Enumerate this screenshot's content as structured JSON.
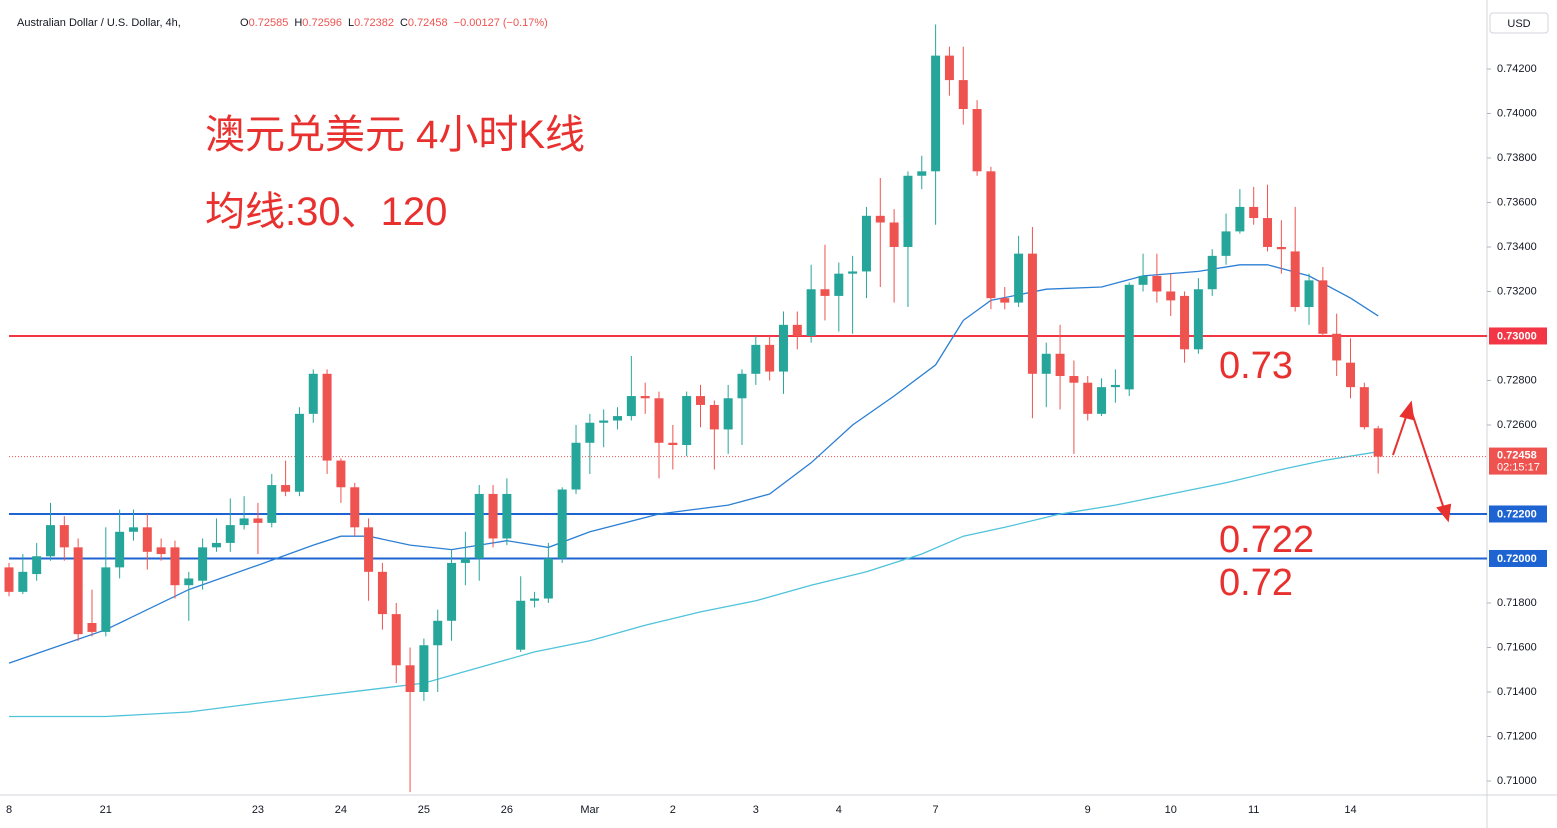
{
  "chart_data": {
    "type": "candlestick",
    "header": {
      "title": "Australian Dollar / U.S. Dollar, 4h,",
      "fields": [
        {
          "label": "O",
          "value": 0.72585
        },
        {
          "label": "H",
          "value": 0.72596
        },
        {
          "label": "L",
          "value": 0.72382
        },
        {
          "label": "C",
          "value": 0.72458
        }
      ],
      "change": "−0.00127 (−0.17%)"
    },
    "currency": "USD",
    "annotations": [
      "澳元兑美元 4小时K线",
      "均线:30、120",
      "0.73",
      "0.722",
      "0.72"
    ],
    "categories": [
      "8",
      null,
      null,
      null,
      null,
      null,
      null,
      "21",
      null,
      null,
      null,
      null,
      null,
      null,
      null,
      null,
      null,
      null,
      "23",
      null,
      null,
      null,
      null,
      null,
      "24",
      null,
      null,
      null,
      null,
      null,
      "25",
      null,
      null,
      null,
      null,
      null,
      "26",
      null,
      null,
      null,
      null,
      null,
      "Mar",
      null,
      null,
      null,
      null,
      null,
      "2",
      null,
      null,
      null,
      null,
      null,
      "3",
      null,
      null,
      null,
      null,
      null,
      "4",
      null,
      null,
      null,
      null,
      null,
      null,
      "7",
      null,
      null,
      null,
      null,
      null,
      null,
      null,
      null,
      null,
      null,
      "9",
      null,
      null,
      null,
      null,
      null,
      "10",
      null,
      null,
      null,
      null,
      null,
      "11",
      null,
      null,
      null,
      null,
      null,
      null,
      "14",
      null,
      null
    ],
    "open": [
      0.7196,
      0.7185,
      0.7193,
      0.7201,
      0.7215,
      0.7205,
      0.7171,
      0.7167,
      0.7196,
      0.7212,
      0.7214,
      0.7205,
      0.7205,
      0.7188,
      0.719,
      0.7205,
      0.7207,
      0.7215,
      0.7218,
      0.7216,
      0.7233,
      0.723,
      0.7265,
      0.7283,
      0.7244,
      0.7232,
      0.7214,
      0.7194,
      0.7175,
      0.7152,
      0.714,
      0.7161,
      0.7172,
      0.7198,
      0.72,
      0.7229,
      0.7209,
      0.7159,
      0.7181,
      0.7182,
      0.72,
      0.7231,
      0.7252,
      0.7261,
      0.7262,
      0.7264,
      0.7273,
      0.7272,
      0.7252,
      0.7251,
      0.7273,
      0.7269,
      0.7258,
      0.7272,
      0.7283,
      0.7296,
      0.7284,
      0.7305,
      0.73,
      0.7321,
      0.7318,
      0.7328,
      0.7329,
      0.7354,
      0.7351,
      0.734,
      0.7372,
      0.7374,
      0.7426,
      0.7415,
      0.7402,
      0.7374,
      0.7317,
      0.7315,
      0.7337,
      0.7283,
      0.7292,
      0.7282,
      0.7279,
      0.7265,
      0.7277,
      0.7276,
      0.7323,
      0.7327,
      0.732,
      0.7318,
      0.7294,
      0.7321,
      0.7336,
      0.7347,
      0.7358,
      0.7353,
      0.734,
      0.7338,
      0.7313,
      0.7325,
      0.7301,
      0.7288,
      0.7277,
      0.72585
    ],
    "high": [
      0.7198,
      0.7202,
      0.7207,
      0.7225,
      0.7219,
      0.7209,
      0.7186,
      0.7214,
      0.7222,
      0.7222,
      0.722,
      0.7209,
      0.7208,
      0.7194,
      0.7209,
      0.7218,
      0.7227,
      0.7228,
      0.7225,
      0.7238,
      0.7244,
      0.7268,
      0.7285,
      0.7285,
      0.7245,
      0.7234,
      0.7218,
      0.7198,
      0.718,
      0.716,
      0.7164,
      0.7177,
      0.7204,
      0.7212,
      0.7233,
      0.7233,
      0.7236,
      0.7192,
      0.7185,
      0.7207,
      0.7232,
      0.726,
      0.7265,
      0.7267,
      0.7268,
      0.7291,
      0.7279,
      0.7275,
      0.726,
      0.7275,
      0.7278,
      0.7271,
      0.7278,
      0.7285,
      0.73,
      0.73,
      0.7311,
      0.7311,
      0.7332,
      0.7341,
      0.7333,
      0.7336,
      0.7358,
      0.7371,
      0.7357,
      0.7374,
      0.7381,
      0.744,
      0.743,
      0.743,
      0.7406,
      0.7376,
      0.7322,
      0.7345,
      0.7349,
      0.7297,
      0.7305,
      0.7289,
      0.7282,
      0.7281,
      0.7285,
      0.7324,
      0.7337,
      0.7337,
      0.7328,
      0.732,
      0.7326,
      0.7339,
      0.7355,
      0.7366,
      0.7367,
      0.7368,
      0.7352,
      0.7358,
      0.7328,
      0.7331,
      0.731,
      0.7299,
      0.7279,
      0.72596
    ],
    "low": [
      0.7183,
      0.7184,
      0.719,
      0.7199,
      0.7199,
      0.7163,
      0.7165,
      0.7165,
      0.7191,
      0.7208,
      0.7195,
      0.7199,
      0.7182,
      0.7172,
      0.7186,
      0.7203,
      0.7203,
      0.7213,
      0.7202,
      0.7214,
      0.7228,
      0.7228,
      0.7261,
      0.7238,
      0.7225,
      0.721,
      0.7181,
      0.7168,
      0.7144,
      0.7095,
      0.7136,
      0.714,
      0.7163,
      0.7188,
      0.719,
      0.7205,
      0.7206,
      0.7158,
      0.7178,
      0.718,
      0.7198,
      0.7229,
      0.7238,
      0.725,
      0.7258,
      0.7262,
      0.7265,
      0.7236,
      0.724,
      0.7246,
      0.7259,
      0.724,
      0.7247,
      0.7251,
      0.7278,
      0.728,
      0.7274,
      0.7294,
      0.7297,
      0.7307,
      0.7302,
      0.7301,
      0.7317,
      0.7322,
      0.7315,
      0.7313,
      0.7366,
      0.735,
      0.7408,
      0.7395,
      0.7372,
      0.7312,
      0.7312,
      0.7313,
      0.7263,
      0.7268,
      0.7267,
      0.7247,
      0.7262,
      0.7264,
      0.727,
      0.7273,
      0.732,
      0.7315,
      0.7309,
      0.7288,
      0.7292,
      0.7318,
      0.7332,
      0.7346,
      0.735,
      0.7338,
      0.7328,
      0.7311,
      0.7305,
      0.73,
      0.7282,
      0.7272,
      0.7258,
      0.72382
    ],
    "close": [
      0.7185,
      0.7194,
      0.7201,
      0.7215,
      0.7205,
      0.7166,
      0.7167,
      0.7196,
      0.7212,
      0.7214,
      0.7203,
      0.7202,
      0.7188,
      0.7191,
      0.7205,
      0.7207,
      0.7215,
      0.7218,
      0.7216,
      0.7233,
      0.723,
      0.7265,
      0.7283,
      0.7244,
      0.7232,
      0.7214,
      0.7194,
      0.7175,
      0.7152,
      0.714,
      0.7161,
      0.7172,
      0.7198,
      0.72,
      0.7229,
      0.7209,
      0.7229,
      0.7181,
      0.7182,
      0.72,
      0.7231,
      0.7252,
      0.7261,
      0.7262,
      0.7264,
      0.7273,
      0.7272,
      0.7252,
      0.7251,
      0.7273,
      0.7269,
      0.7258,
      0.7272,
      0.7283,
      0.7296,
      0.7284,
      0.7305,
      0.73,
      0.7321,
      0.7318,
      0.7328,
      0.7329,
      0.7354,
      0.7351,
      0.734,
      0.7372,
      0.7374,
      0.7426,
      0.7415,
      0.7402,
      0.7374,
      0.7317,
      0.7315,
      0.7337,
      0.7283,
      0.7292,
      0.7282,
      0.7279,
      0.7265,
      0.7277,
      0.7278,
      0.7323,
      0.7327,
      0.732,
      0.7316,
      0.7294,
      0.7321,
      0.7336,
      0.7347,
      0.7358,
      0.7353,
      0.734,
      0.7339,
      0.7313,
      0.7325,
      0.7301,
      0.7289,
      0.7277,
      0.7259,
      0.72458
    ],
    "up_color": "#26a69a",
    "down_color": "#ef5350",
    "moving_averages": [
      {
        "color": "#2b7fd4",
        "x": [
          0,
          7,
          13,
          18,
          22,
          24,
          26,
          29,
          32,
          34,
          36,
          39,
          42,
          47,
          52,
          55,
          58,
          61,
          64,
          67,
          69,
          71,
          75,
          79,
          82,
          86,
          89,
          91,
          94,
          97,
          99
        ],
        "values": [
          0.7153,
          0.7168,
          0.7186,
          0.7197,
          0.7206,
          0.721,
          0.721,
          0.7206,
          0.7204,
          0.7206,
          0.7208,
          0.7205,
          0.7212,
          0.722,
          0.7224,
          0.7229,
          0.7243,
          0.726,
          0.7273,
          0.7287,
          0.7307,
          0.7316,
          0.7321,
          0.7322,
          0.7327,
          0.7329,
          0.7332,
          0.7332,
          0.7327,
          0.7317,
          0.7309
        ]
      },
      {
        "color": "#4fc3d9",
        "x": [
          0,
          7,
          13,
          18,
          22,
          26,
          30,
          34,
          38,
          42,
          46,
          50,
          54,
          58,
          62,
          66,
          69,
          72,
          76,
          80,
          84,
          88,
          92,
          95,
          99
        ],
        "values": [
          0.7129,
          0.7129,
          0.7131,
          0.7135,
          0.7138,
          0.7141,
          0.7144,
          0.7151,
          0.7158,
          0.7163,
          0.717,
          0.7176,
          0.7181,
          0.7188,
          0.7194,
          0.7202,
          0.721,
          0.7214,
          0.722,
          0.7224,
          0.7229,
          0.7234,
          0.724,
          0.7244,
          0.7248
        ]
      }
    ],
    "levels": [
      {
        "value": 0.73,
        "label": "0.73000",
        "color": "#f23645"
      },
      {
        "value": 0.722,
        "label": "0.72200",
        "color": "#1e63d2"
      },
      {
        "value": 0.72,
        "label": "0.72000",
        "color": "#1e63d2"
      }
    ],
    "last_price": {
      "value": 0.72458,
      "label": "0.72458",
      "countdown": "02:15:17",
      "color": "#ef5350"
    },
    "ylim": [
      0.70937,
      0.74474
    ],
    "yticks": [
      {
        "value": 0.71,
        "label": "0.71000"
      },
      {
        "value": 0.712,
        "label": "0.71200"
      },
      {
        "value": 0.714,
        "label": "0.71400"
      },
      {
        "value": 0.716,
        "label": "0.71600"
      },
      {
        "value": 0.718,
        "label": "0.71800"
      },
      {
        "value": 0.726,
        "label": "0.72600"
      },
      {
        "value": 0.728,
        "label": "0.72800"
      },
      {
        "value": 0.732,
        "label": "0.73200"
      },
      {
        "value": 0.734,
        "label": "0.73400"
      },
      {
        "value": 0.736,
        "label": "0.73600"
      },
      {
        "value": 0.738,
        "label": "0.73800"
      },
      {
        "value": 0.74,
        "label": "0.74000"
      },
      {
        "value": 0.742,
        "label": "0.74200"
      }
    ],
    "grid": false
  }
}
